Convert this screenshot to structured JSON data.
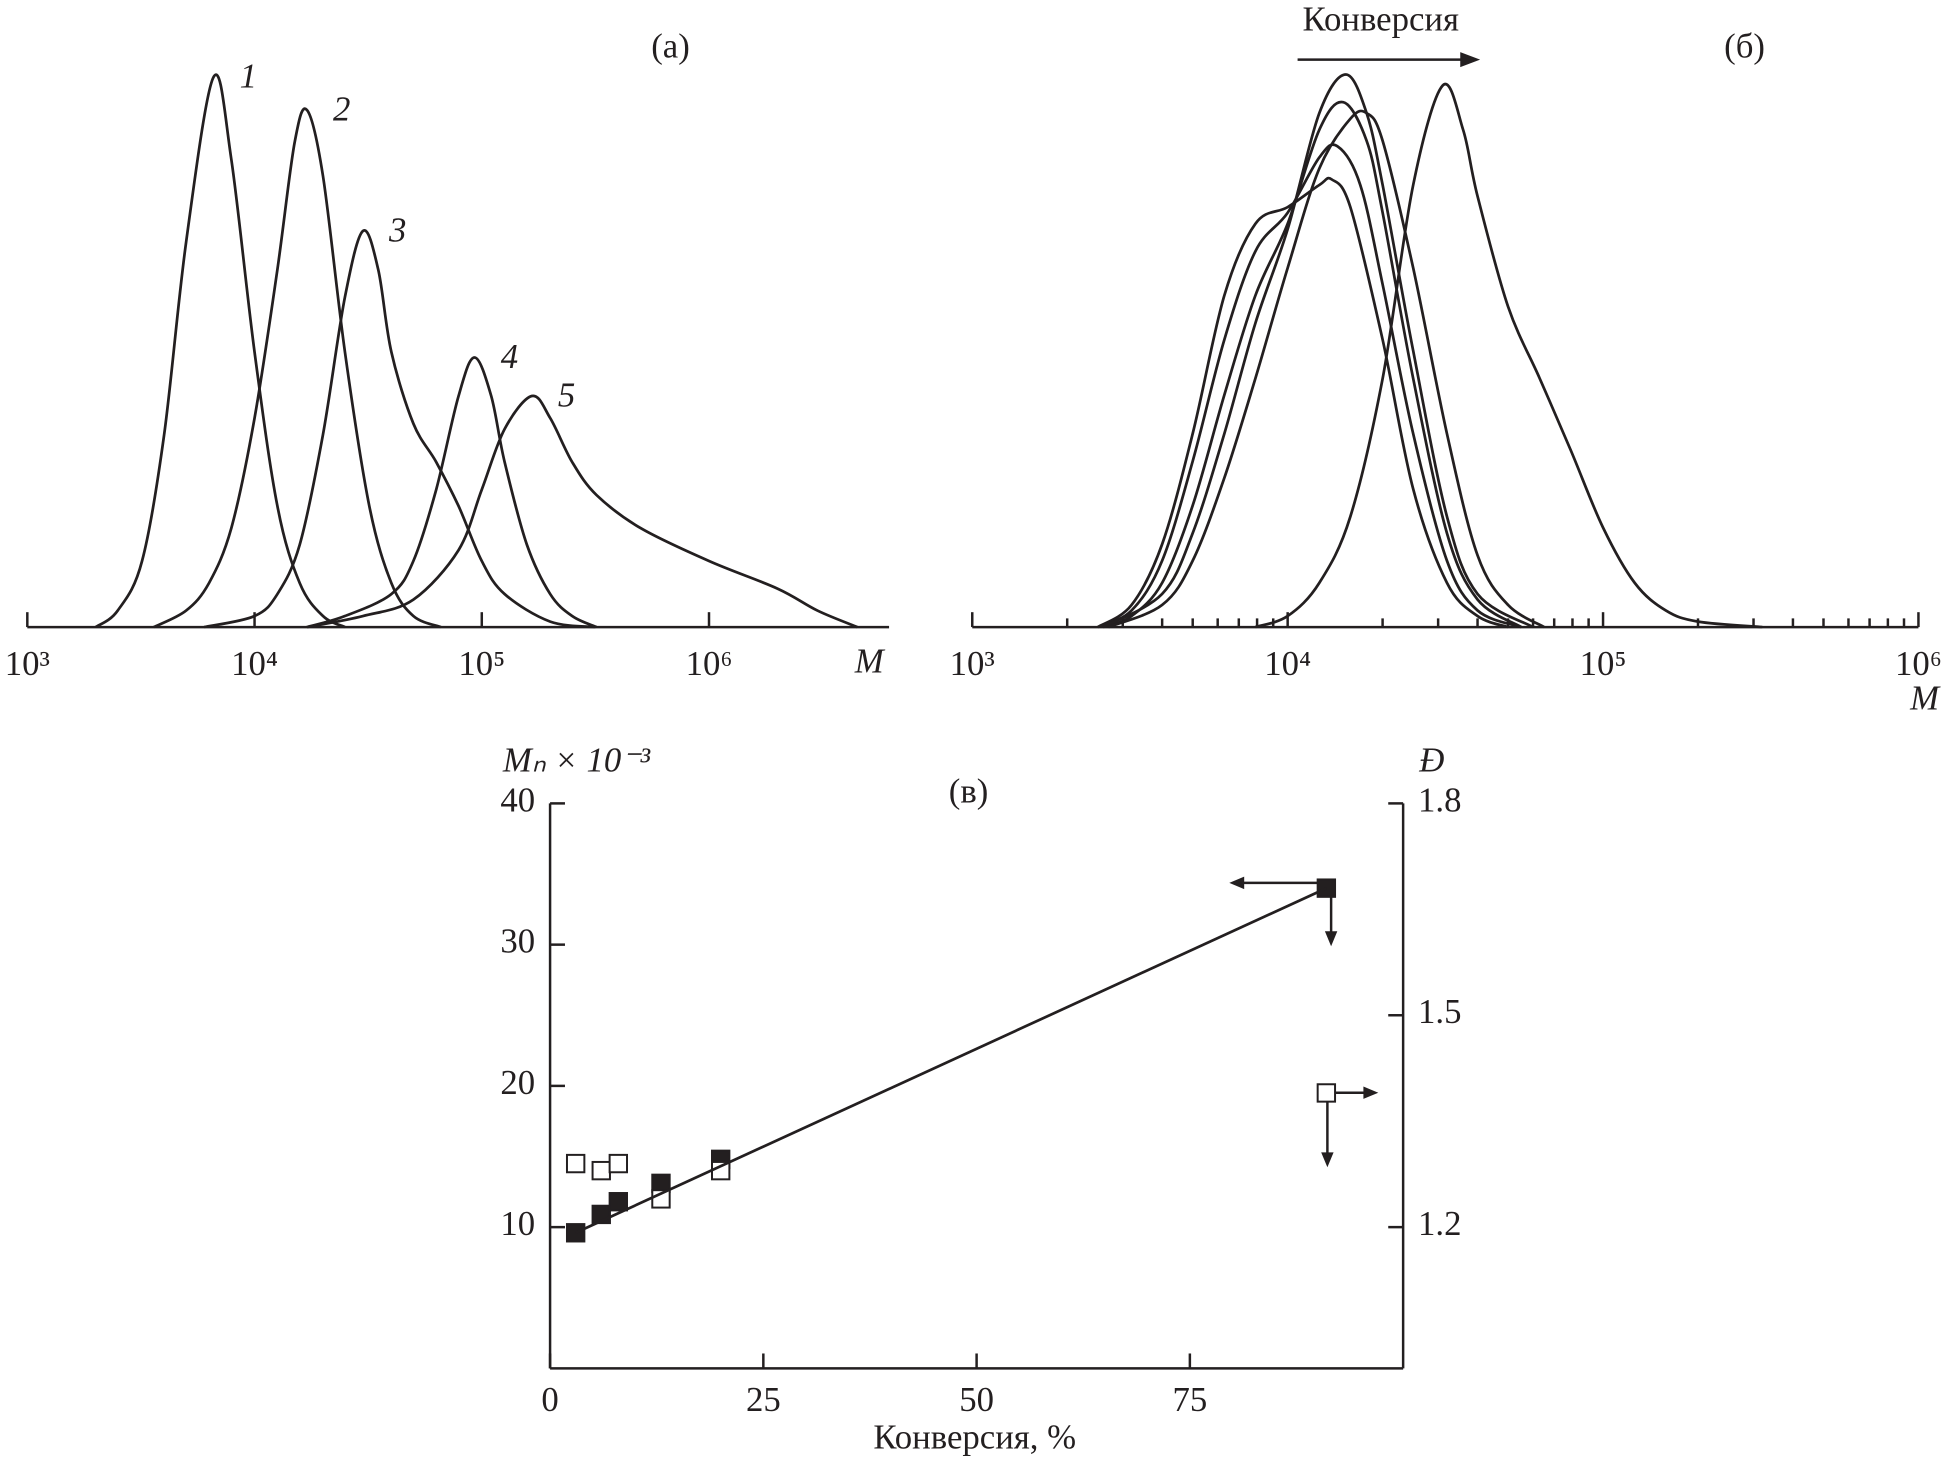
{
  "chart_data": [
    {
      "type": "line",
      "label": "(а)",
      "xlabel": "M",
      "xscale": "log",
      "xlim": [
        1000,
        6200000
      ],
      "ylim": [
        0,
        1
      ],
      "xticks": [
        {
          "value": 1000,
          "label": "10³"
        },
        {
          "value": 10000,
          "label": "10⁴"
        },
        {
          "value": 100000,
          "label": "10⁵"
        },
        {
          "value": 1000000,
          "label": "10⁶"
        }
      ],
      "minor_ticks": false,
      "color": "#231f20",
      "series": [
        {
          "name": "1",
          "x": [
            2000,
            2500,
            3200,
            4000,
            5000,
            6600,
            7900,
            10000,
            12600,
            15800,
            20000,
            25000
          ],
          "values": [
            0,
            0.03,
            0.12,
            0.35,
            0.7,
            1.0,
            0.85,
            0.5,
            0.22,
            0.08,
            0.02,
            0
          ]
        },
        {
          "name": "2",
          "x": [
            3600,
            5000,
            6300,
            7900,
            10000,
            12600,
            15000,
            17000,
            20000,
            25000,
            32000,
            40000,
            50000,
            66000
          ],
          "values": [
            0,
            0.03,
            0.08,
            0.18,
            0.38,
            0.65,
            0.88,
            0.94,
            0.82,
            0.5,
            0.22,
            0.08,
            0.02,
            0
          ]
        },
        {
          "name": "3",
          "x": [
            6000,
            10000,
            12600,
            15800,
            20000,
            25000,
            30000,
            35000,
            40000,
            50000,
            63000,
            79000,
            100000,
            126000,
            200000,
            316000
          ],
          "values": [
            0,
            0.02,
            0.06,
            0.15,
            0.35,
            0.6,
            0.72,
            0.65,
            0.5,
            0.37,
            0.3,
            0.22,
            0.12,
            0.06,
            0.01,
            0
          ]
        },
        {
          "name": "4",
          "x": [
            17000,
            25000,
            40000,
            50000,
            63000,
            79000,
            93000,
            110000,
            126000,
            158000,
            200000,
            250000,
            320000
          ],
          "values": [
            0,
            0.02,
            0.06,
            0.12,
            0.25,
            0.42,
            0.49,
            0.42,
            0.3,
            0.15,
            0.06,
            0.02,
            0
          ]
        },
        {
          "name": "5",
          "x": [
            17000,
            30000,
            50000,
            79000,
            100000,
            126000,
            166000,
            200000,
            250000,
            320000,
            500000,
            1000000,
            2000000,
            3000000,
            4500000
          ],
          "values": [
            0,
            0.02,
            0.05,
            0.14,
            0.25,
            0.36,
            0.42,
            0.38,
            0.3,
            0.24,
            0.18,
            0.12,
            0.07,
            0.03,
            0
          ]
        }
      ]
    },
    {
      "type": "line",
      "label": "(б)",
      "xlabel": "M",
      "annotation": "Конверсия",
      "xscale": "log",
      "xlim": [
        1000,
        1000000
      ],
      "ylim": [
        0,
        1
      ],
      "xticks": [
        {
          "value": 1000,
          "label": "10³"
        },
        {
          "value": 10000,
          "label": "10⁴"
        },
        {
          "value": 100000,
          "label": "10⁵"
        },
        {
          "value": 1000000,
          "label": "10⁶"
        }
      ],
      "minor_ticks": true,
      "color": "#231f20",
      "series": [
        {
          "x": [
            2500,
            3200,
            4000,
            5000,
            6300,
            7900,
            10000,
            12600,
            13800,
            15800,
            20000,
            25000,
            32000,
            40000,
            50000
          ],
          "values": [
            0,
            0.04,
            0.15,
            0.35,
            0.6,
            0.73,
            0.76,
            0.8,
            0.81,
            0.76,
            0.52,
            0.25,
            0.08,
            0.02,
            0
          ]
        },
        {
          "x": [
            2500,
            3200,
            4000,
            5000,
            6300,
            7900,
            10000,
            12600,
            14400,
            17000,
            20000,
            25000,
            32000,
            40000,
            55000
          ],
          "values": [
            0,
            0.03,
            0.12,
            0.3,
            0.52,
            0.68,
            0.75,
            0.85,
            0.87,
            0.8,
            0.62,
            0.35,
            0.12,
            0.03,
            0
          ]
        },
        {
          "x": [
            2600,
            3200,
            4000,
            5000,
            6300,
            7900,
            10000,
            12600,
            15000,
            17800,
            20000,
            25000,
            32000,
            40000,
            55000
          ],
          "values": [
            0,
            0.02,
            0.08,
            0.22,
            0.42,
            0.6,
            0.73,
            0.9,
            0.95,
            0.88,
            0.75,
            0.45,
            0.17,
            0.05,
            0
          ]
        },
        {
          "x": [
            2600,
            4000,
            5000,
            6300,
            7900,
            10000,
            12600,
            15300,
            17800,
            20000,
            25000,
            32000,
            40000,
            60000
          ],
          "values": [
            0,
            0.06,
            0.17,
            0.35,
            0.55,
            0.72,
            0.93,
            1.0,
            0.93,
            0.8,
            0.5,
            0.2,
            0.06,
            0
          ]
        },
        {
          "x": [
            2700,
            4000,
            5000,
            6300,
            7900,
            10000,
            12600,
            15800,
            17800,
            20000,
            25000,
            32000,
            40000,
            50000,
            65000
          ],
          "values": [
            0,
            0.04,
            0.12,
            0.27,
            0.45,
            0.65,
            0.83,
            0.92,
            0.93,
            0.88,
            0.65,
            0.35,
            0.13,
            0.04,
            0
          ]
        },
        {
          "x": [
            7900,
            10000,
            12600,
            15800,
            20000,
            25000,
            31000,
            36000,
            40000,
            50000,
            63000,
            79000,
            100000,
            126000,
            158000,
            200000,
            320000
          ],
          "values": [
            0,
            0.02,
            0.08,
            0.2,
            0.45,
            0.8,
            0.98,
            0.9,
            0.78,
            0.58,
            0.45,
            0.32,
            0.18,
            0.08,
            0.03,
            0.01,
            0
          ]
        }
      ]
    },
    {
      "type": "scatter",
      "label": "(в)",
      "xlabel": "Конверсия, %",
      "ylabel": "Mₙ × 10⁻³",
      "y2label": "Đ",
      "xlim": [
        0,
        100
      ],
      "xticks": [
        0,
        25,
        50,
        75
      ],
      "ylim": [
        0,
        40
      ],
      "yticks": [
        10,
        20,
        30,
        40
      ],
      "y2lim": [
        1.0,
        1.8
      ],
      "y2ticks": [
        1.2,
        1.5,
        1.8
      ],
      "series": [
        {
          "marker": "filled-square",
          "color": "#231f20",
          "x": [
            3,
            6,
            8,
            13,
            20,
            91
          ],
          "values": [
            9.6,
            10.9,
            11.8,
            13.1,
            14.8,
            34.0
          ]
        },
        {
          "marker": "open-square",
          "color": "#231f20",
          "axis": "y2",
          "x": [
            3,
            6,
            8,
            13,
            20,
            91
          ],
          "values": [
            1.29,
            1.28,
            1.29,
            1.24,
            1.28,
            1.39
          ]
        },
        {
          "marker": "line",
          "color": "#231f20",
          "x": [
            3,
            91
          ],
          "values": [
            9.6,
            34.0
          ]
        }
      ]
    }
  ]
}
